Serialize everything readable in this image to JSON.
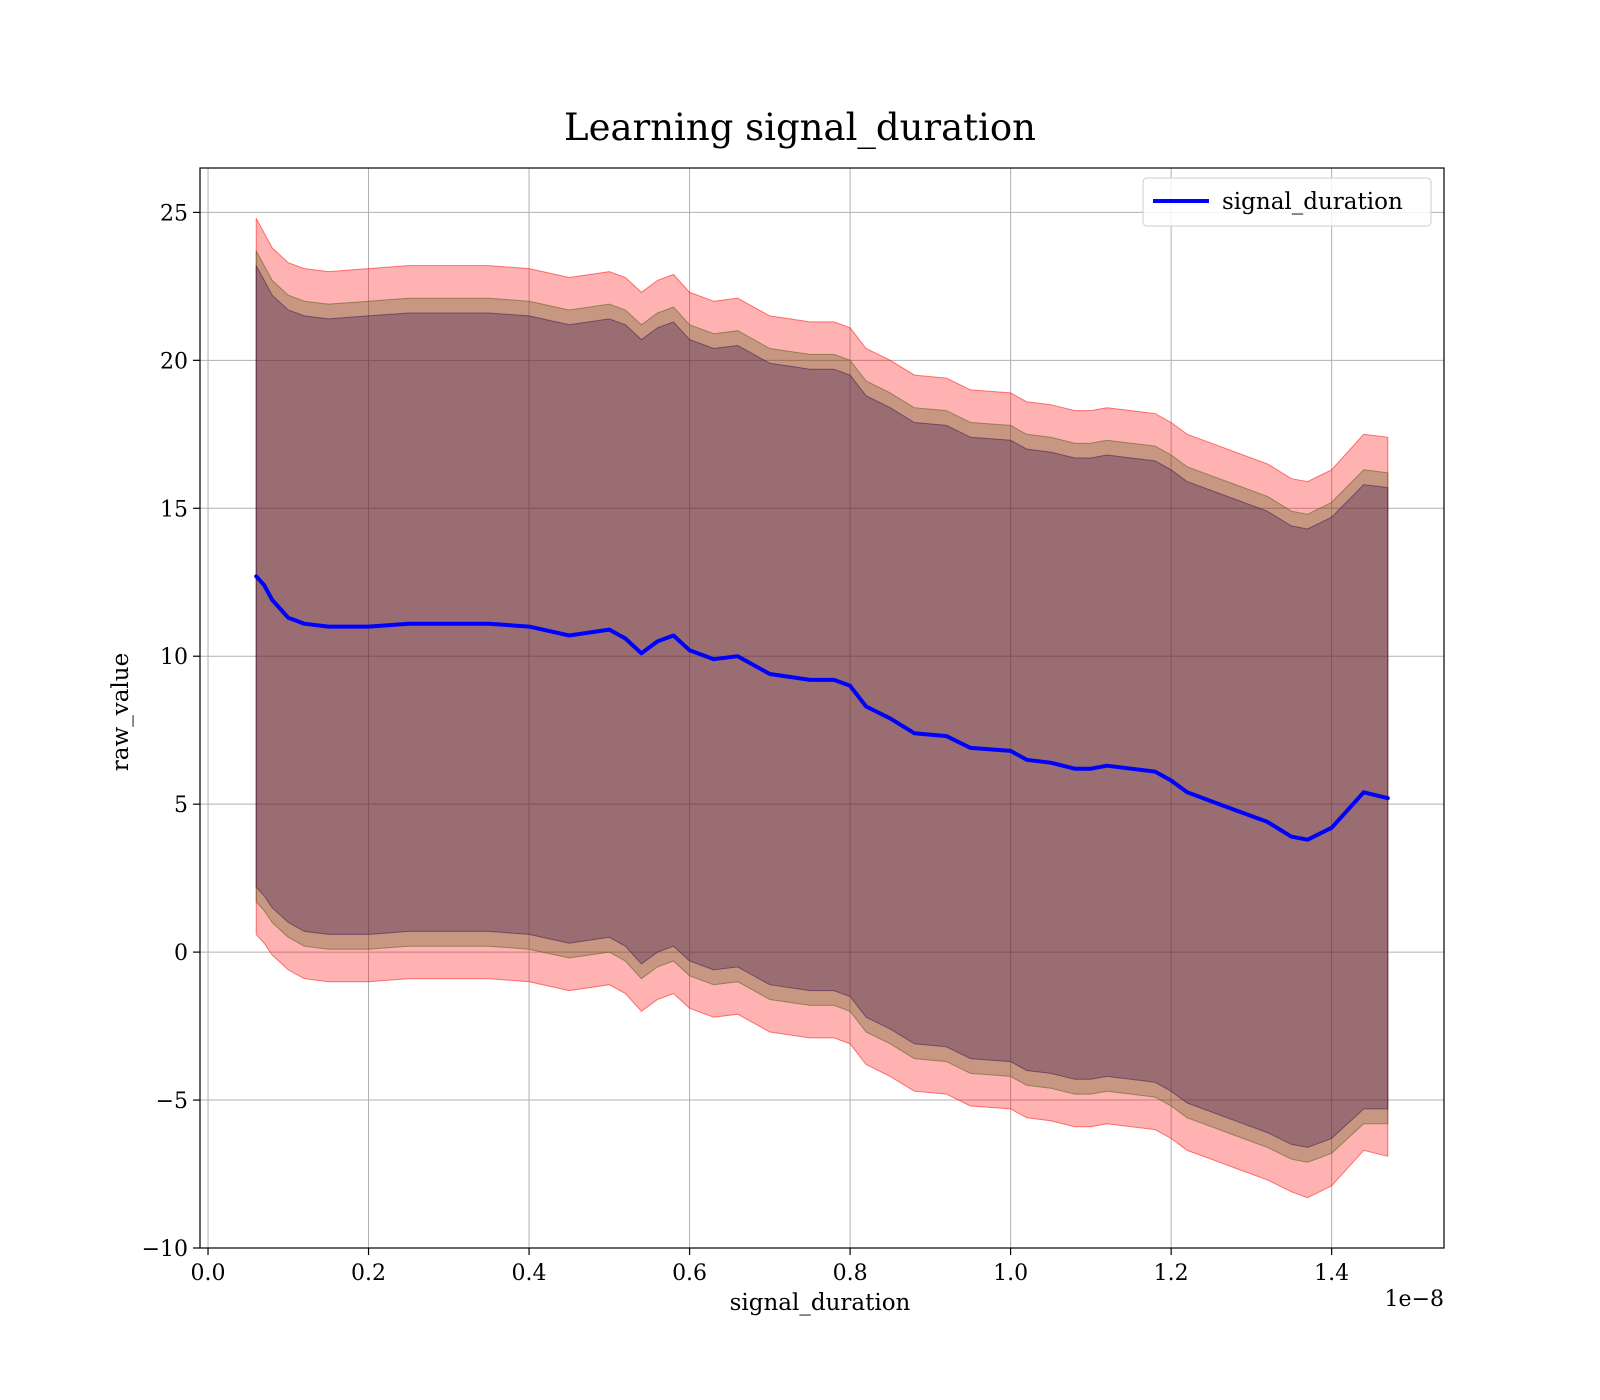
{
  "chart_data": {
    "type": "line",
    "title": "Learning signal_duration",
    "xlabel": "signal_duration",
    "ylabel": "raw_value",
    "x_offset_label": "1e−8",
    "xlim": [
      -0.01,
      1.54
    ],
    "ylim": [
      -10,
      26.5
    ],
    "grid": true,
    "legend_position": "top-right",
    "x_ticks": [
      0.0,
      0.2,
      0.4,
      0.6,
      0.8,
      1.0,
      1.2,
      1.4
    ],
    "x_tick_labels": [
      "0.0",
      "0.2",
      "0.4",
      "0.6",
      "0.8",
      "1.0",
      "1.2",
      "1.4"
    ],
    "y_ticks": [
      -10,
      -5,
      0,
      5,
      10,
      15,
      20,
      25
    ],
    "y_tick_labels": [
      "−10",
      "−5",
      "0",
      "5",
      "10",
      "15",
      "20",
      "25"
    ],
    "series": [
      {
        "name": "signal_duration",
        "color": "#0000ff",
        "x": [
          0.06,
          0.07,
          0.08,
          0.09,
          0.1,
          0.12,
          0.15,
          0.2,
          0.25,
          0.3,
          0.35,
          0.4,
          0.45,
          0.5,
          0.52,
          0.54,
          0.56,
          0.58,
          0.6,
          0.63,
          0.66,
          0.7,
          0.75,
          0.78,
          0.8,
          0.82,
          0.85,
          0.88,
          0.92,
          0.95,
          1.0,
          1.02,
          1.05,
          1.08,
          1.1,
          1.12,
          1.15,
          1.18,
          1.2,
          1.22,
          1.25,
          1.28,
          1.32,
          1.35,
          1.37,
          1.4,
          1.44,
          1.47
        ],
        "y": [
          12.7,
          12.4,
          11.9,
          11.6,
          11.3,
          11.1,
          11.0,
          11.0,
          11.1,
          11.1,
          11.1,
          11.0,
          10.7,
          10.9,
          10.6,
          10.1,
          10.5,
          10.7,
          10.2,
          9.9,
          10.0,
          9.4,
          9.2,
          9.2,
          9.0,
          8.3,
          7.9,
          7.4,
          7.3,
          6.9,
          6.8,
          6.5,
          6.4,
          6.2,
          6.2,
          6.3,
          6.2,
          6.1,
          5.8,
          5.4,
          5.1,
          4.8,
          4.4,
          3.9,
          3.8,
          4.2,
          5.4,
          5.2
        ]
      }
    ],
    "bands": [
      {
        "color": "#ff0000",
        "opacity": 0.3,
        "x": [
          0.06,
          0.07,
          0.08,
          0.1,
          0.12,
          0.15,
          0.2,
          0.25,
          0.3,
          0.35,
          0.4,
          0.45,
          0.5,
          0.52,
          0.54,
          0.56,
          0.58,
          0.6,
          0.63,
          0.66,
          0.7,
          0.75,
          0.78,
          0.8,
          0.82,
          0.85,
          0.88,
          0.92,
          0.95,
          1.0,
          1.02,
          1.05,
          1.08,
          1.1,
          1.12,
          1.15,
          1.18,
          1.2,
          1.22,
          1.25,
          1.28,
          1.32,
          1.35,
          1.37,
          1.4,
          1.44,
          1.47
        ],
        "upper": [
          24.8,
          24.3,
          23.8,
          23.3,
          23.1,
          23.0,
          23.1,
          23.2,
          23.2,
          23.2,
          23.1,
          22.8,
          23.0,
          22.8,
          22.3,
          22.7,
          22.9,
          22.3,
          22.0,
          22.1,
          21.5,
          21.3,
          21.3,
          21.1,
          20.4,
          20.0,
          19.5,
          19.4,
          19.0,
          18.9,
          18.6,
          18.5,
          18.3,
          18.3,
          18.4,
          18.3,
          18.2,
          17.9,
          17.5,
          17.2,
          16.9,
          16.5,
          16.0,
          15.9,
          16.3,
          17.5,
          17.4
        ],
        "lower": [
          0.6,
          0.3,
          -0.1,
          -0.6,
          -0.9,
          -1.0,
          -1.0,
          -0.9,
          -0.9,
          -0.9,
          -1.0,
          -1.3,
          -1.1,
          -1.4,
          -2.0,
          -1.6,
          -1.4,
          -1.9,
          -2.2,
          -2.1,
          -2.7,
          -2.9,
          -2.9,
          -3.1,
          -3.8,
          -4.2,
          -4.7,
          -4.8,
          -5.2,
          -5.3,
          -5.6,
          -5.7,
          -5.9,
          -5.9,
          -5.8,
          -5.9,
          -6.0,
          -6.3,
          -6.7,
          -7.0,
          -7.3,
          -7.7,
          -8.1,
          -8.3,
          -7.9,
          -6.7,
          -6.9
        ]
      },
      {
        "color": "#4a5a14",
        "opacity": 0.3,
        "x": [
          0.06,
          0.07,
          0.08,
          0.1,
          0.12,
          0.15,
          0.2,
          0.25,
          0.3,
          0.35,
          0.4,
          0.45,
          0.5,
          0.52,
          0.54,
          0.56,
          0.58,
          0.6,
          0.63,
          0.66,
          0.7,
          0.75,
          0.78,
          0.8,
          0.82,
          0.85,
          0.88,
          0.92,
          0.95,
          1.0,
          1.02,
          1.05,
          1.08,
          1.1,
          1.12,
          1.15,
          1.18,
          1.2,
          1.22,
          1.25,
          1.28,
          1.32,
          1.35,
          1.37,
          1.4,
          1.44,
          1.47
        ],
        "upper": [
          23.7,
          23.2,
          22.7,
          22.2,
          22.0,
          21.9,
          22.0,
          22.1,
          22.1,
          22.1,
          22.0,
          21.7,
          21.9,
          21.7,
          21.2,
          21.6,
          21.8,
          21.2,
          20.9,
          21.0,
          20.4,
          20.2,
          20.2,
          20.0,
          19.3,
          18.9,
          18.4,
          18.3,
          17.9,
          17.8,
          17.5,
          17.4,
          17.2,
          17.2,
          17.3,
          17.2,
          17.1,
          16.8,
          16.4,
          16.1,
          15.8,
          15.4,
          14.9,
          14.8,
          15.2,
          16.3,
          16.2
        ],
        "lower": [
          1.7,
          1.4,
          1.0,
          0.5,
          0.2,
          0.1,
          0.1,
          0.2,
          0.2,
          0.2,
          0.1,
          -0.2,
          0.0,
          -0.3,
          -0.9,
          -0.5,
          -0.3,
          -0.8,
          -1.1,
          -1.0,
          -1.6,
          -1.8,
          -1.8,
          -2.0,
          -2.7,
          -3.1,
          -3.6,
          -3.7,
          -4.1,
          -4.2,
          -4.5,
          -4.6,
          -4.8,
          -4.8,
          -4.7,
          -4.8,
          -4.9,
          -5.2,
          -5.6,
          -5.9,
          -6.2,
          -6.6,
          -7.0,
          -7.1,
          -6.8,
          -5.8,
          -5.8
        ]
      },
      {
        "color": "#3b1552",
        "opacity": 0.32,
        "x": [
          0.06,
          0.07,
          0.08,
          0.1,
          0.12,
          0.15,
          0.2,
          0.25,
          0.3,
          0.35,
          0.4,
          0.45,
          0.5,
          0.52,
          0.54,
          0.56,
          0.58,
          0.6,
          0.63,
          0.66,
          0.7,
          0.75,
          0.78,
          0.8,
          0.82,
          0.85,
          0.88,
          0.92,
          0.95,
          1.0,
          1.02,
          1.05,
          1.08,
          1.1,
          1.12,
          1.15,
          1.18,
          1.2,
          1.22,
          1.25,
          1.28,
          1.32,
          1.35,
          1.37,
          1.4,
          1.44,
          1.47
        ],
        "upper": [
          23.2,
          22.7,
          22.2,
          21.7,
          21.5,
          21.4,
          21.5,
          21.6,
          21.6,
          21.6,
          21.5,
          21.2,
          21.4,
          21.2,
          20.7,
          21.1,
          21.3,
          20.7,
          20.4,
          20.5,
          19.9,
          19.7,
          19.7,
          19.5,
          18.8,
          18.4,
          17.9,
          17.8,
          17.4,
          17.3,
          17.0,
          16.9,
          16.7,
          16.7,
          16.8,
          16.7,
          16.6,
          16.3,
          15.9,
          15.6,
          15.3,
          14.9,
          14.4,
          14.3,
          14.7,
          15.8,
          15.7
        ],
        "lower": [
          2.2,
          1.9,
          1.5,
          1.0,
          0.7,
          0.6,
          0.6,
          0.7,
          0.7,
          0.7,
          0.6,
          0.3,
          0.5,
          0.2,
          -0.4,
          0.0,
          0.2,
          -0.3,
          -0.6,
          -0.5,
          -1.1,
          -1.3,
          -1.3,
          -1.5,
          -2.2,
          -2.6,
          -3.1,
          -3.2,
          -3.6,
          -3.7,
          -4.0,
          -4.1,
          -4.3,
          -4.3,
          -4.2,
          -4.3,
          -4.4,
          -4.7,
          -5.1,
          -5.4,
          -5.7,
          -6.1,
          -6.5,
          -6.6,
          -6.3,
          -5.3,
          -5.3
        ]
      }
    ]
  }
}
